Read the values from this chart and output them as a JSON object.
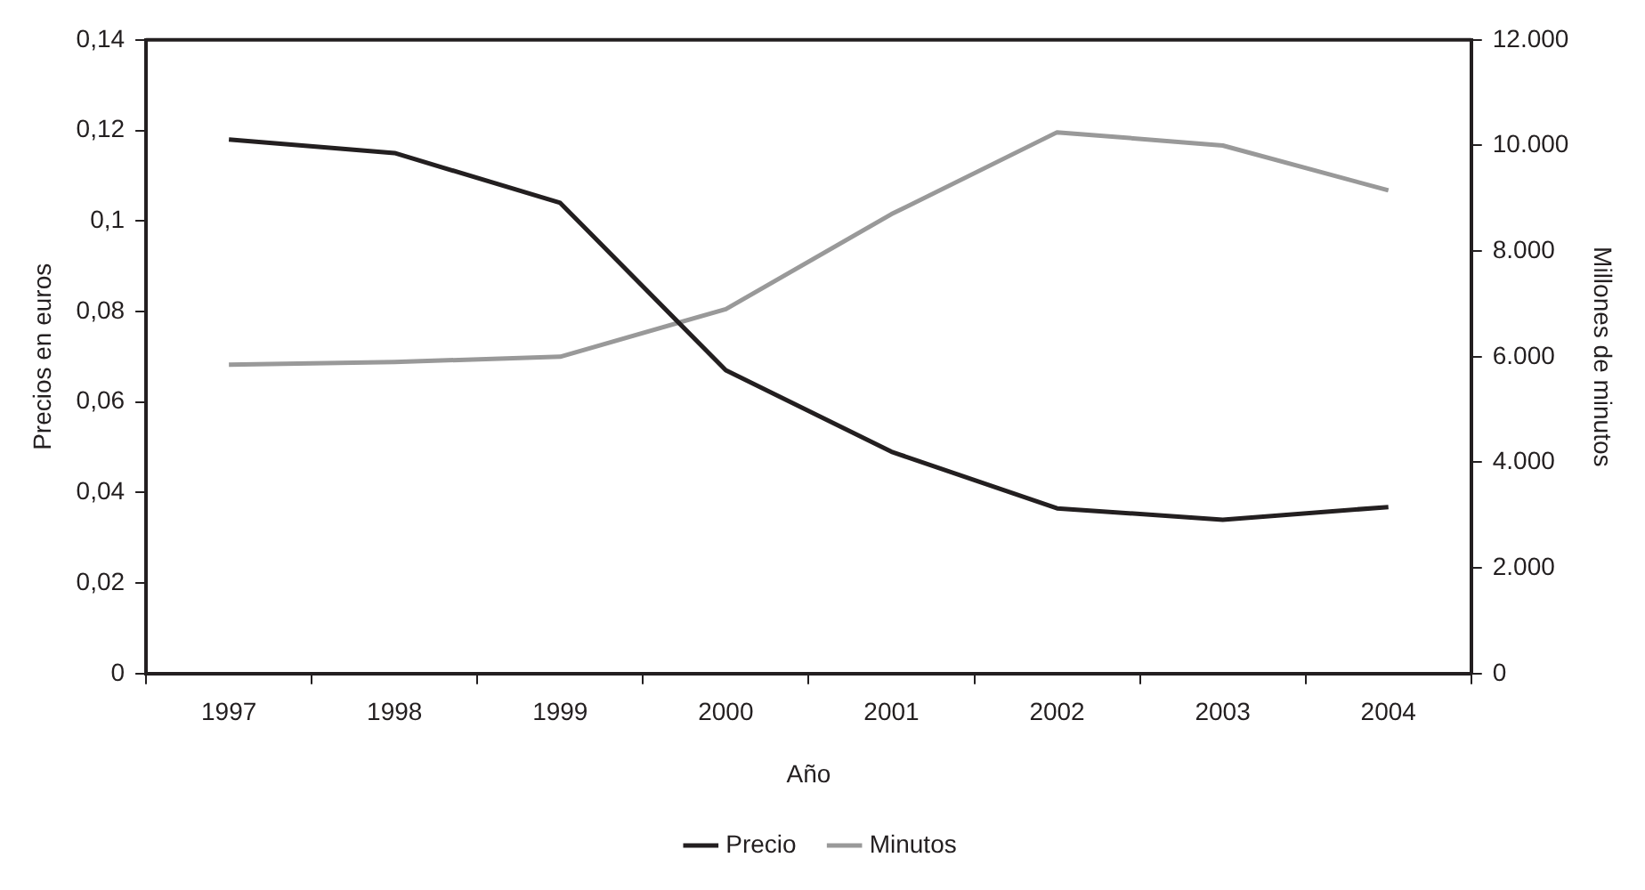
{
  "chart_data": {
    "type": "line",
    "xlabel": "Año",
    "ylabel": "Precios en euros",
    "y2label": "Millones de minutos",
    "categories": [
      "1997",
      "1998",
      "1999",
      "2000",
      "2001",
      "2002",
      "2003",
      "2004"
    ],
    "series": [
      {
        "name": "Precio",
        "color": "#231f20",
        "values": [
          0.118,
          0.115,
          0.104,
          0.067,
          0.049,
          0.0365,
          0.034,
          0.0368
        ]
      },
      {
        "name": "Minutos",
        "color": "#999999",
        "axis": "y2",
        "values": [
          5850,
          5900,
          6000,
          6900,
          8700,
          10250,
          10000,
          9150
        ]
      }
    ],
    "ylim": [
      0,
      0.14
    ],
    "yticks": [
      {
        "value": 0,
        "label": "0"
      },
      {
        "value": 0.02,
        "label": "0,02"
      },
      {
        "value": 0.04,
        "label": "0,04"
      },
      {
        "value": 0.06,
        "label": "0,06"
      },
      {
        "value": 0.08,
        "label": "0,08"
      },
      {
        "value": 0.1,
        "label": "0,1"
      },
      {
        "value": 0.12,
        "label": "0,12"
      },
      {
        "value": 0.14,
        "label": "0,14"
      }
    ],
    "y2lim": [
      0,
      12000
    ],
    "y2ticks": [
      {
        "value": 0,
        "label": "0"
      },
      {
        "value": 2000,
        "label": "2.000"
      },
      {
        "value": 4000,
        "label": "4.000"
      },
      {
        "value": 6000,
        "label": "6.000"
      },
      {
        "value": 8000,
        "label": "8.000"
      },
      {
        "value": 10000,
        "label": "10.000"
      },
      {
        "value": 12000,
        "label": "12.000"
      }
    ],
    "grid": false,
    "legend": "bottom",
    "marker": "none",
    "line_style": "solid"
  }
}
